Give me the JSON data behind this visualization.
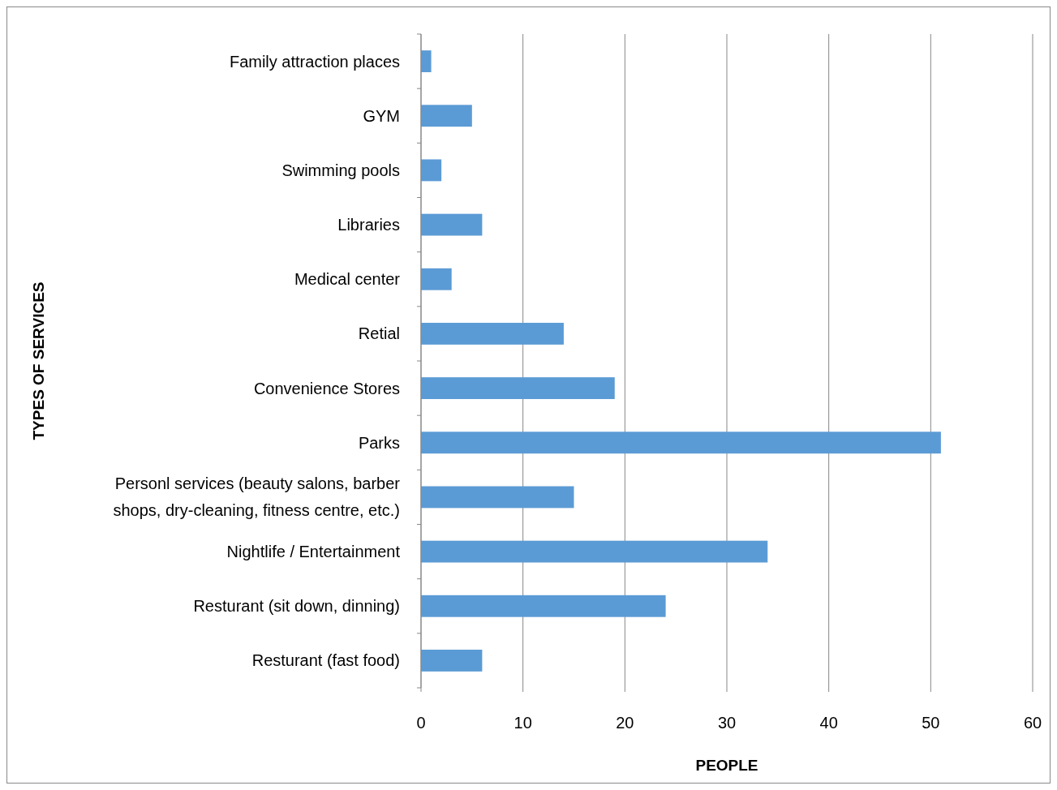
{
  "chart_data": {
    "type": "bar",
    "orientation": "horizontal",
    "categories": [
      "Family attraction places",
      "GYM",
      "Swimming pools",
      "Libraries",
      "Medical center",
      "Retial",
      "Convenience Stores",
      "Parks",
      "Personl services (beauty salons, barber shops, dry-cleaning, fitness centre, etc.)",
      "Nightlife / Entertainment",
      "Resturant (sit down, dinning)",
      "Resturant (fast food)"
    ],
    "values": [
      1,
      5,
      2,
      6,
      3,
      14,
      19,
      51,
      15,
      34,
      24,
      6
    ],
    "color": "#5b9bd5",
    "xlim": [
      0,
      60
    ],
    "xticks": [
      0,
      10,
      20,
      30,
      40,
      50,
      60
    ],
    "xlabel": "PEOPLE",
    "ylabel": "TYPES OF SERVICES",
    "grid": "x"
  }
}
